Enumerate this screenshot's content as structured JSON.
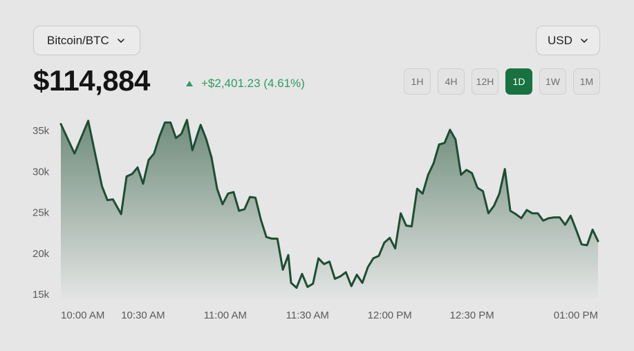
{
  "selector": {
    "asset": "Bitcoin/BTC",
    "currency": "USD",
    "asset_icon": "chevron-down-icon",
    "currency_icon": "chevron-down-icon"
  },
  "price": {
    "value": "$114,884",
    "change": "+$2,401.23 (4.61%)",
    "direction_icon": "triangle-up-icon"
  },
  "ranges": {
    "items": [
      "1H",
      "4H",
      "12H",
      "1D",
      "1W",
      "1M"
    ],
    "active": "1D"
  },
  "colors": {
    "line": "#1d4d33",
    "fill_top": "#6f8c7b",
    "fill_bottom": "#e3e5e4",
    "positive": "#2f9a63",
    "active_button": "#17723f"
  },
  "chart_data": {
    "type": "area",
    "title": "",
    "xlabel": "",
    "ylabel": "",
    "ylim": [
      15000,
      36000
    ],
    "yticks": [
      15000,
      20000,
      25000,
      30000,
      35000
    ],
    "ytick_labels": [
      "15k",
      "20k",
      "25k",
      "30k",
      "35k"
    ],
    "xticks": [
      0,
      30,
      60,
      90,
      120,
      150,
      180
    ],
    "xtick_labels": [
      "10:00 AM",
      "10:30 AM",
      "11:00 AM",
      "11:30 AM",
      "12:00 PM",
      "12:30 PM",
      "01:00 PM"
    ],
    "grid": false,
    "x_minutes_after_10am": [
      0,
      5,
      10,
      15,
      17,
      19,
      22,
      24,
      26,
      28,
      30,
      32,
      34,
      36,
      38,
      40,
      42,
      44,
      46,
      48,
      50,
      51,
      53,
      55,
      57,
      59,
      61,
      63,
      65,
      67,
      69,
      71,
      73,
      75,
      77,
      79,
      81,
      83,
      84,
      86,
      88,
      90,
      92,
      94,
      96,
      98,
      100,
      102,
      104,
      106,
      108,
      110,
      112,
      114,
      116,
      118,
      120,
      122,
      124,
      126,
      128,
      130,
      132,
      134,
      136,
      138,
      140,
      142,
      144,
      146,
      148,
      150,
      152,
      154,
      156,
      158,
      160,
      162,
      164,
      166,
      168,
      170,
      172,
      174,
      176,
      178,
      180,
      182,
      184,
      186,
      188,
      190,
      192,
      194,
      196
    ],
    "values": [
      35800,
      32200,
      36200,
      28200,
      26500,
      26600,
      24800,
      29400,
      29700,
      30500,
      28500,
      31400,
      32200,
      34300,
      36000,
      36000,
      34100,
      34600,
      36300,
      32600,
      34700,
      35700,
      34000,
      31700,
      27900,
      26000,
      27300,
      27500,
      25200,
      25400,
      26900,
      26800,
      24100,
      22000,
      21800,
      21800,
      18000,
      19800,
      16400,
      15800,
      17500,
      15900,
      16300,
      19400,
      18700,
      19000,
      16900,
      17200,
      17700,
      16000,
      17400,
      16400,
      18300,
      19400,
      19700,
      21300,
      21900,
      20600,
      24900,
      23400,
      23300,
      27900,
      27300,
      29600,
      31000,
      33300,
      33500,
      35100,
      33900,
      29600,
      30200,
      29800,
      28000,
      27600,
      24900,
      25800,
      27300,
      30300,
      25200,
      24800,
      24300,
      25300,
      24900,
      24900,
      24000,
      24300,
      24400,
      24400,
      23500,
      24600,
      22900,
      21100,
      21000,
      22900,
      21500
    ]
  }
}
